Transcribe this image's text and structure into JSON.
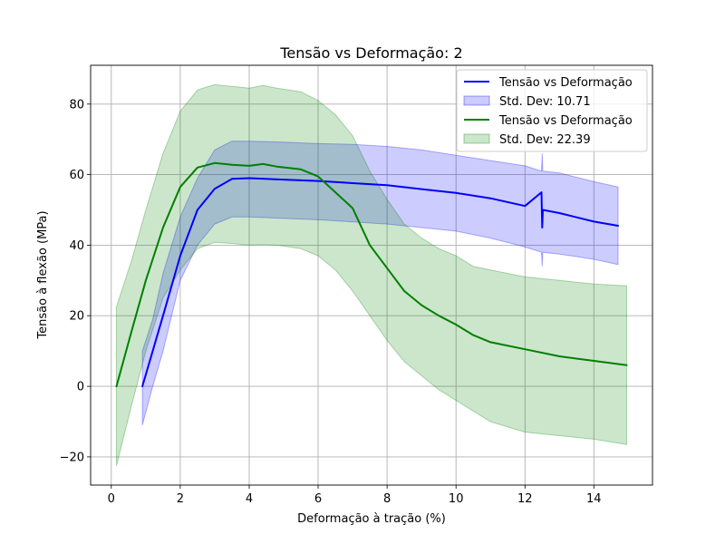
{
  "chart_data": {
    "type": "line",
    "title": "Tensão vs Deformação: 2",
    "xlabel": "Deformação à tração (%)",
    "ylabel": "Tensão à flexão (MPa)",
    "xlim": [
      -0.6,
      15.7
    ],
    "ylim": [
      -28,
      91
    ],
    "xticks": [
      0,
      2,
      4,
      6,
      8,
      10,
      12,
      14
    ],
    "yticks": [
      -20,
      0,
      20,
      40,
      60,
      80
    ],
    "xtick_labels": [
      "0",
      "2",
      "4",
      "6",
      "8",
      "10",
      "12",
      "14"
    ],
    "ytick_labels": [
      "−20",
      "0",
      "20",
      "40",
      "60",
      "80"
    ],
    "grid": true,
    "legend_position": "top-right",
    "series": [
      {
        "name": "Tensão vs Deformação",
        "color": "#0000ff",
        "band_color": "#0000ff",
        "band_name": "Std. Dev: 10.71",
        "x": [
          0.9,
          1.2,
          1.5,
          2.0,
          2.5,
          3.0,
          3.5,
          4.0,
          5.0,
          6.0,
          7.0,
          8.0,
          9.0,
          10.0,
          11.0,
          12.0,
          12.48,
          12.5,
          12.52,
          13.0,
          14.0,
          14.7
        ],
        "y": [
          0,
          10,
          20,
          37,
          50,
          56,
          58.8,
          59,
          58.6,
          58.2,
          57.6,
          57,
          55.9,
          54.8,
          53.3,
          51.1,
          55,
          45,
          50,
          49.1,
          46.7,
          45.5
        ],
        "lower": [
          -11,
          0,
          10,
          30,
          40,
          46,
          48,
          48,
          47.6,
          47.2,
          46.6,
          46,
          45,
          44,
          42,
          39.5,
          38,
          34,
          38,
          37.5,
          36,
          34.5
        ],
        "upper": [
          10,
          19,
          32,
          48,
          59,
          67,
          69.5,
          69.5,
          69.2,
          68.8,
          68.6,
          68,
          67,
          65.5,
          64,
          62.5,
          61,
          66,
          61,
          60.5,
          58,
          56.5
        ]
      },
      {
        "name": "Tensão vs Deformação",
        "color": "#008000",
        "band_color": "#008000",
        "band_name": "Std. Dev: 22.39",
        "x": [
          0.15,
          0.6,
          1.0,
          1.5,
          2.0,
          2.5,
          3.0,
          3.5,
          4.0,
          4.4,
          4.8,
          5.5,
          6.0,
          6.5,
          7.0,
          7.5,
          8.0,
          8.5,
          9.0,
          9.5,
          10.0,
          10.5,
          11.0,
          12.0,
          13.0,
          14.0,
          14.95
        ],
        "y": [
          0,
          16,
          30,
          45,
          56.5,
          62,
          63.3,
          62.8,
          62.5,
          63,
          62.3,
          61.5,
          59.5,
          55,
          50.5,
          40,
          33.5,
          27,
          23,
          20,
          17.5,
          14.5,
          12.5,
          10.5,
          8.5,
          7.2,
          6
        ],
        "lower": [
          -22.5,
          -5,
          10,
          25,
          33,
          39,
          40.8,
          40.5,
          40,
          40.2,
          40,
          39,
          37,
          33,
          27,
          20,
          13,
          7,
          3,
          -1,
          -4,
          -7,
          -10,
          -13,
          -14,
          -15,
          -16.5
        ],
        "upper": [
          22.5,
          36,
          50,
          66,
          78,
          84,
          85.5,
          85,
          84.5,
          85.3,
          84.5,
          83.5,
          81,
          77,
          71,
          61,
          53,
          46,
          42,
          39,
          37,
          34,
          33,
          31,
          30,
          29,
          28.5
        ]
      }
    ]
  }
}
